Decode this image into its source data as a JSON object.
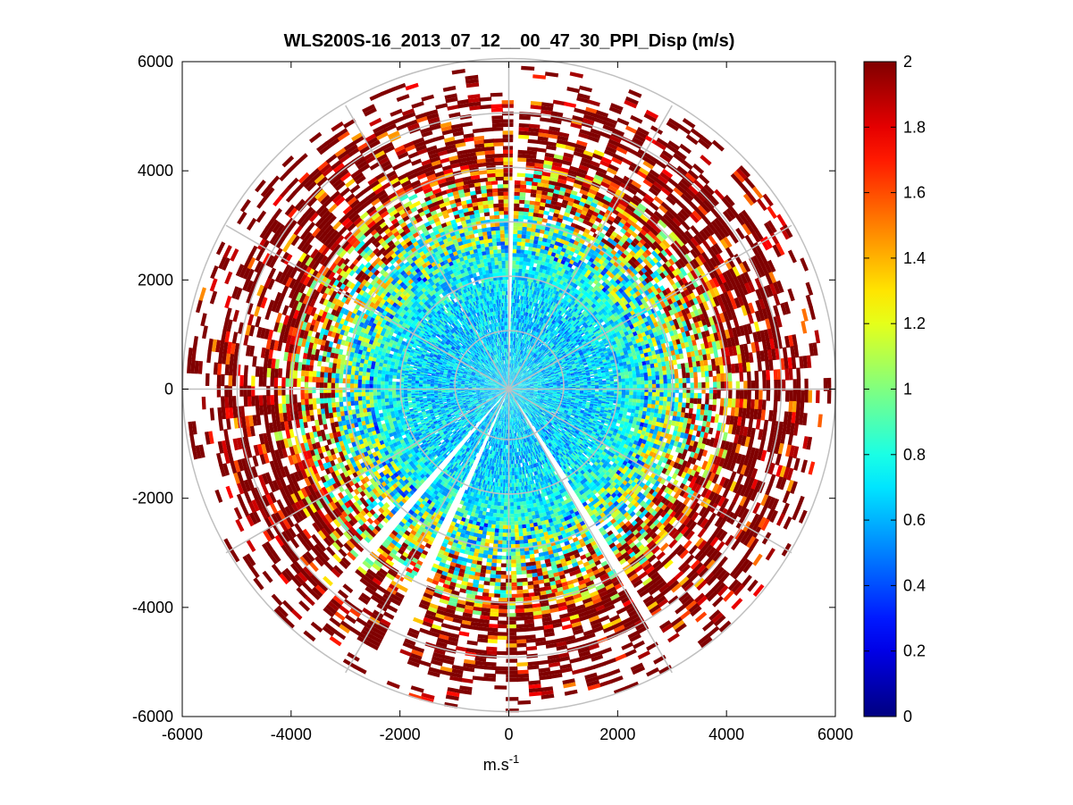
{
  "chart_data": {
    "type": "heatmap",
    "subtype": "polar-ppi",
    "title": "WLS200S-16_2013_07_12__00_47_30_PPI_Disp (m/s)",
    "xlabel": "m.s",
    "xlabel_superscript": "-1",
    "ylabel": "",
    "xlim": [
      -6000,
      6000
    ],
    "ylim": [
      -6000,
      6000
    ],
    "xticks": [
      -6000,
      -4000,
      -2000,
      0,
      2000,
      4000,
      6000
    ],
    "yticks": [
      6000,
      4000,
      2000,
      0,
      -2000,
      -4000,
      -6000
    ],
    "xtick_labels": [
      "-6000",
      "-4000",
      "-2000",
      "0",
      "2000",
      "4000",
      "6000"
    ],
    "ytick_labels": [
      "6000",
      "4000",
      "2000",
      "0",
      "-2000",
      "-4000",
      "-6000"
    ],
    "range_rings_m": [
      1000,
      2000,
      3000,
      4000,
      5000,
      6000
    ],
    "spokes_deg": [
      0,
      30,
      60,
      90,
      120,
      150,
      180,
      210,
      240,
      270,
      300,
      330
    ],
    "data_gaps_azimuth_deg": [
      [
        -1,
        1
      ],
      [
        146,
        149
      ],
      [
        202,
        205
      ],
      [
        219,
        222
      ]
    ],
    "colorbar": {
      "min": 0,
      "max": 2,
      "ticks": [
        0,
        0.2,
        0.4,
        0.6,
        0.8,
        1,
        1.2,
        1.4,
        1.6,
        1.8,
        2
      ],
      "tick_labels": [
        "0",
        "0.2",
        "0.4",
        "0.6",
        "0.8",
        "1",
        "1.2",
        "1.4",
        "1.6",
        "1.8",
        "2"
      ],
      "colormap": "jet"
    },
    "radial_profile": [
      {
        "range_m": 500,
        "mean": 0.68
      },
      {
        "range_m": 1000,
        "mean": 0.65
      },
      {
        "range_m": 1500,
        "mean": 0.66
      },
      {
        "range_m": 2000,
        "mean": 0.72
      },
      {
        "range_m": 2500,
        "mean": 0.8
      },
      {
        "range_m": 3000,
        "mean": 0.95
      },
      {
        "range_m": 3500,
        "mean": 1.1
      },
      {
        "range_m": 4000,
        "mean": 1.4
      },
      {
        "range_m": 4500,
        "mean": 1.75
      },
      {
        "range_m": 5000,
        "mean": 1.9
      },
      {
        "range_m": 5500,
        "mean": 2.0
      }
    ]
  }
}
